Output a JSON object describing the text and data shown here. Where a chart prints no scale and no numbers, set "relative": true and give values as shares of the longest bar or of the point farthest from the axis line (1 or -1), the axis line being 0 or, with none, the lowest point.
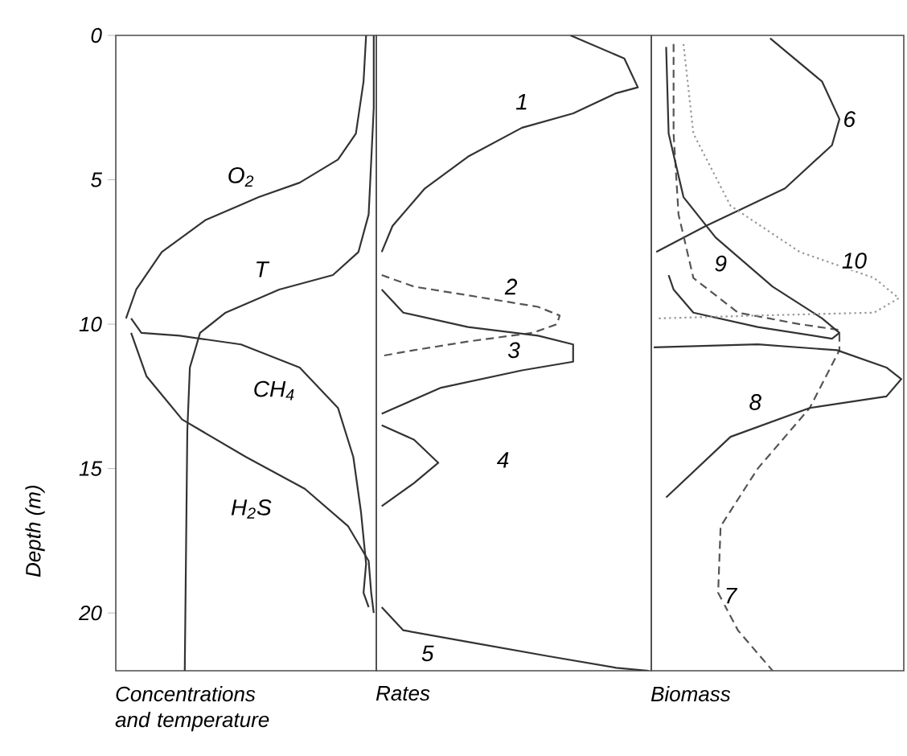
{
  "chart_data": [
    {
      "type": "line",
      "orientation": "horizontal",
      "relative": true,
      "xlabel": "Concentrations and temperature",
      "ylabel": "Depth (m)",
      "ylim": [
        22,
        0
      ],
      "yticks": [
        0,
        5,
        10,
        15,
        20
      ],
      "tick_labels": "y",
      "series": [
        {
          "name": "O$_{2}$",
          "color": "#333333",
          "line_style": "solid",
          "x": [
            0,
            1.6,
            3.4,
            4.3,
            5.1,
            5.6,
            6.4,
            7.5,
            8.8,
            9.8
          ],
          "values": [
            0.97,
            0.96,
            0.93,
            0.86,
            0.71,
            0.55,
            0.34,
            0.17,
            0.07,
            0.03
          ]
        },
        {
          "name": "T",
          "color": "#333333",
          "line_style": "solid",
          "x": [
            0,
            2.5,
            6.2,
            7.5,
            8.3,
            8.8,
            9.6,
            10.3,
            11.5,
            13.7,
            22
          ],
          "values": [
            1.0,
            1.0,
            0.98,
            0.94,
            0.84,
            0.63,
            0.42,
            0.32,
            0.28,
            0.27,
            0.26
          ]
        },
        {
          "name": "CH$_{4}$",
          "color": "#333333",
          "line_style": "solid",
          "x": [
            9.8,
            10.3,
            10.4,
            10.7,
            11.5,
            12.9,
            14.6,
            16.5,
            18.3,
            19.3,
            19.8
          ],
          "values": [
            0.05,
            0.09,
            0.24,
            0.48,
            0.71,
            0.86,
            0.92,
            0.95,
            0.97,
            0.96,
            0.98
          ]
        },
        {
          "name": "H$_{2}$S",
          "color": "#333333",
          "line_style": "solid",
          "x": [
            10.3,
            11.8,
            13.3,
            14.6,
            15.7,
            17.0,
            18.2,
            19.3,
            20.0
          ],
          "values": [
            0.05,
            0.11,
            0.25,
            0.5,
            0.73,
            0.9,
            0.98,
            0.99,
            1.0
          ]
        }
      ]
    },
    {
      "type": "line",
      "orientation": "horizontal",
      "relative": true,
      "xlabel": "Rates",
      "ylim": [
        22,
        0
      ],
      "tick_labels": false,
      "series": [
        {
          "name": "1",
          "color": "#333333",
          "line_style": "solid",
          "x": [
            0,
            0.8,
            1.8,
            2.0,
            2.7,
            3.2,
            4.2,
            5.3,
            6.6,
            7.5
          ],
          "values": [
            0.71,
            0.91,
            0.96,
            0.88,
            0.72,
            0.53,
            0.33,
            0.17,
            0.05,
            0.01
          ]
        },
        {
          "name": "2",
          "color": "#555555",
          "line_style": "dashed",
          "x": [
            8.3,
            8.7,
            9.0,
            9.4,
            9.7,
            10.0,
            10.3,
            10.6,
            10.9,
            11.1
          ],
          "values": [
            0.01,
            0.13,
            0.33,
            0.59,
            0.67,
            0.66,
            0.57,
            0.33,
            0.13,
            0.01
          ]
        },
        {
          "name": "3",
          "color": "#333333",
          "line_style": "solid",
          "x": [
            8.8,
            9.6,
            10.1,
            10.4,
            10.7,
            11.3,
            11.6,
            12.2,
            13.1
          ],
          "values": [
            0.01,
            0.09,
            0.33,
            0.59,
            0.72,
            0.72,
            0.53,
            0.23,
            0.01
          ]
        },
        {
          "name": "4",
          "color": "#333333",
          "line_style": "solid",
          "x": [
            13.5,
            14.0,
            14.8,
            15.5,
            16.3
          ],
          "values": [
            0.01,
            0.13,
            0.22,
            0.13,
            0.01
          ]
        },
        {
          "name": "5",
          "color": "#333333",
          "line_style": "solid",
          "x": [
            19.8,
            20.6,
            21.0,
            21.5,
            21.9,
            22
          ],
          "values": [
            0.01,
            0.09,
            0.33,
            0.63,
            0.88,
            1.0
          ]
        }
      ]
    },
    {
      "type": "line",
      "orientation": "horizontal",
      "relative": true,
      "xlabel": "Biomass",
      "ylim": [
        22,
        0
      ],
      "tick_labels": false,
      "series": [
        {
          "name": "6",
          "color": "#333333",
          "line_style": "solid",
          "x": [
            0.1,
            1.6,
            2.9,
            3.8,
            5.3,
            6.6,
            7.5
          ],
          "values": [
            0.47,
            0.68,
            0.75,
            0.72,
            0.53,
            0.21,
            0.01
          ]
        },
        {
          "name": "7",
          "color": "#555555",
          "line_style": "dashed",
          "x": [
            0.3,
            3.4,
            6.2,
            8.4,
            9.6,
            10.0,
            10.2,
            10.9,
            12.9,
            15.0,
            17.0,
            19.3,
            20.6,
            22
          ],
          "values": [
            0.08,
            0.08,
            0.1,
            0.16,
            0.34,
            0.59,
            0.75,
            0.75,
            0.63,
            0.42,
            0.27,
            0.26,
            0.34,
            0.48
          ]
        },
        {
          "name": "8",
          "color": "#333333",
          "line_style": "solid",
          "x": [
            10.8,
            10.7,
            10.9,
            11.5,
            11.9,
            12.5,
            12.9,
            13.9,
            16.0
          ],
          "values": [
            0.0,
            0.42,
            0.74,
            0.94,
            1.0,
            0.94,
            0.63,
            0.31,
            0.05
          ]
        },
        {
          "name": "9",
          "color": "#333333",
          "line_style": "solid",
          "x": [
            0.4,
            3.4,
            5.6,
            7.0,
            8.7,
            9.8,
            10.3,
            10.5,
            10.1,
            9.6,
            8.8,
            8.3
          ],
          "values": [
            0.05,
            0.06,
            0.12,
            0.25,
            0.48,
            0.68,
            0.75,
            0.72,
            0.42,
            0.16,
            0.08,
            0.06
          ]
        },
        {
          "name": "10",
          "color": "#999999",
          "line_style": "dotted",
          "x": [
            0.3,
            3.4,
            5.9,
            7.5,
            8.4,
            9.1,
            9.6,
            9.7,
            9.8
          ],
          "values": [
            0.12,
            0.16,
            0.31,
            0.59,
            0.89,
            0.99,
            0.89,
            0.42,
            0.02
          ]
        }
      ]
    }
  ]
}
